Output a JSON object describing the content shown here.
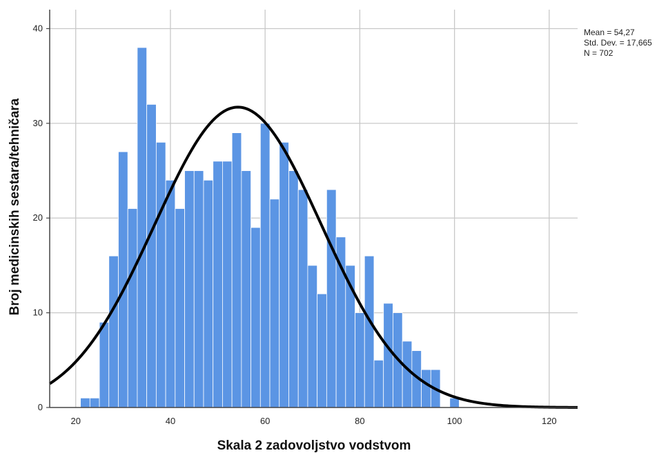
{
  "chart_data": {
    "type": "histogram",
    "xlabel": "Skala 2 zadovoljstvo vodstvom",
    "ylabel": "Broj medicinskih sestara/tehničara",
    "xlim": [
      14.5,
      126
    ],
    "ylim": [
      0,
      42
    ],
    "x_ticks": [
      20,
      40,
      60,
      80,
      100,
      120
    ],
    "y_ticks": [
      0,
      10,
      20,
      30,
      40
    ],
    "grid": true,
    "bin_width": 2,
    "bins": [
      {
        "x0": 21,
        "x1": 23,
        "count": 1
      },
      {
        "x0": 23,
        "x1": 25,
        "count": 1
      },
      {
        "x0": 25,
        "x1": 27,
        "count": 9
      },
      {
        "x0": 27,
        "x1": 29,
        "count": 16
      },
      {
        "x0": 29,
        "x1": 31,
        "count": 27
      },
      {
        "x0": 31,
        "x1": 33,
        "count": 21
      },
      {
        "x0": 33,
        "x1": 35,
        "count": 38
      },
      {
        "x0": 35,
        "x1": 37,
        "count": 32
      },
      {
        "x0": 37,
        "x1": 39,
        "count": 28
      },
      {
        "x0": 39,
        "x1": 41,
        "count": 24
      },
      {
        "x0": 41,
        "x1": 43,
        "count": 21
      },
      {
        "x0": 43,
        "x1": 45,
        "count": 25
      },
      {
        "x0": 45,
        "x1": 47,
        "count": 25
      },
      {
        "x0": 47,
        "x1": 49,
        "count": 24
      },
      {
        "x0": 49,
        "x1": 51,
        "count": 26
      },
      {
        "x0": 51,
        "x1": 53,
        "count": 26
      },
      {
        "x0": 53,
        "x1": 55,
        "count": 29
      },
      {
        "x0": 55,
        "x1": 57,
        "count": 25
      },
      {
        "x0": 57,
        "x1": 59,
        "count": 19
      },
      {
        "x0": 59,
        "x1": 61,
        "count": 30
      },
      {
        "x0": 61,
        "x1": 63,
        "count": 22
      },
      {
        "x0": 63,
        "x1": 65,
        "count": 28
      },
      {
        "x0": 65,
        "x1": 67,
        "count": 25
      },
      {
        "x0": 67,
        "x1": 69,
        "count": 23
      },
      {
        "x0": 69,
        "x1": 71,
        "count": 15
      },
      {
        "x0": 71,
        "x1": 73,
        "count": 12
      },
      {
        "x0": 73,
        "x1": 75,
        "count": 23
      },
      {
        "x0": 75,
        "x1": 77,
        "count": 18
      },
      {
        "x0": 77,
        "x1": 79,
        "count": 15
      },
      {
        "x0": 79,
        "x1": 81,
        "count": 10
      },
      {
        "x0": 81,
        "x1": 83,
        "count": 16
      },
      {
        "x0": 83,
        "x1": 85,
        "count": 5
      },
      {
        "x0": 85,
        "x1": 87,
        "count": 11
      },
      {
        "x0": 87,
        "x1": 89,
        "count": 10
      },
      {
        "x0": 89,
        "x1": 91,
        "count": 7
      },
      {
        "x0": 91,
        "x1": 93,
        "count": 6
      },
      {
        "x0": 93,
        "x1": 95,
        "count": 4
      },
      {
        "x0": 95,
        "x1": 97,
        "count": 4
      },
      {
        "x0": 99,
        "x1": 101,
        "count": 1
      }
    ],
    "normal_curve": {
      "mean": 54.27,
      "sd": 17.665,
      "n": 702
    },
    "stats_text": [
      "Mean = 54,27",
      "Std. Dev. = 17,665",
      "N = 702"
    ],
    "colors": {
      "bar": "#5b95e4",
      "bar_edge": "#ffffff",
      "curve": "#000000",
      "grid": "#c8c8c8",
      "axis": "#444444"
    }
  }
}
